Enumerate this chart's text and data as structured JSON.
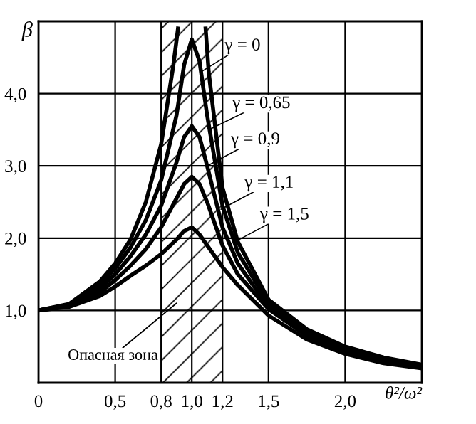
{
  "chart_data": {
    "type": "line",
    "ylabel": "β",
    "xlabel": "θ²/ω²",
    "xlim": [
      0,
      2.5
    ],
    "ylim": [
      0,
      5
    ],
    "xticks": [
      {
        "value": 0,
        "label": "0"
      },
      {
        "value": 0.5,
        "label": "0,5"
      },
      {
        "value": 0.8,
        "label": "0,8"
      },
      {
        "value": 1.0,
        "label": "1,0"
      },
      {
        "value": 1.2,
        "label": "1,2"
      },
      {
        "value": 1.5,
        "label": "1,5"
      },
      {
        "value": 2.0,
        "label": "2,0"
      }
    ],
    "yticks": [
      {
        "value": 1,
        "label": "1,0"
      },
      {
        "value": 2,
        "label": "2,0"
      },
      {
        "value": 3,
        "label": "3,0"
      },
      {
        "value": 4,
        "label": "4,0"
      }
    ],
    "grid": true,
    "marker": "none",
    "line_style": "solid",
    "series": [
      {
        "color": "#000000",
        "x": [
          0,
          0.2,
          0.4,
          0.5,
          0.6,
          0.7,
          0.8,
          0.88,
          0.91,
          1.0,
          1.09,
          1.11,
          1.2,
          1.3,
          1.5,
          1.75,
          2.0,
          2.25,
          2.5
        ],
        "values": [
          1.0,
          1.09,
          1.4,
          1.65,
          1.98,
          2.5,
          3.3,
          4.4,
          4.9,
          null,
          4.9,
          4.3,
          2.7,
          1.95,
          1.15,
          0.74,
          0.5,
          0.35,
          0.25
        ]
      },
      {
        "color": "#000000",
        "x": [
          0,
          0.2,
          0.4,
          0.5,
          0.6,
          0.7,
          0.8,
          0.9,
          0.95,
          1.0,
          1.05,
          1.1,
          1.2,
          1.3,
          1.5,
          1.75,
          2.0,
          2.25,
          2.5
        ],
        "values": [
          1.0,
          1.08,
          1.35,
          1.58,
          1.87,
          2.25,
          2.8,
          3.7,
          4.4,
          4.75,
          4.45,
          3.7,
          2.45,
          1.8,
          1.1,
          0.71,
          0.48,
          0.33,
          0.23
        ]
      },
      {
        "color": "#000000",
        "x": [
          0,
          0.2,
          0.4,
          0.5,
          0.6,
          0.7,
          0.8,
          0.9,
          0.95,
          1.0,
          1.05,
          1.1,
          1.2,
          1.3,
          1.5,
          1.75,
          2.0,
          2.25,
          2.5
        ],
        "values": [
          1.0,
          1.07,
          1.3,
          1.5,
          1.75,
          2.05,
          2.45,
          3.05,
          3.4,
          3.55,
          3.4,
          3.0,
          2.15,
          1.65,
          1.05,
          0.68,
          0.46,
          0.32,
          0.22
        ]
      },
      {
        "color": "#000000",
        "x": [
          0,
          0.2,
          0.4,
          0.5,
          0.6,
          0.7,
          0.8,
          0.9,
          0.95,
          1.0,
          1.05,
          1.1,
          1.2,
          1.3,
          1.5,
          1.75,
          2.0,
          2.25,
          2.5
        ],
        "values": [
          1.0,
          1.06,
          1.25,
          1.42,
          1.62,
          1.85,
          2.15,
          2.55,
          2.75,
          2.85,
          2.75,
          2.5,
          1.9,
          1.5,
          1.02,
          0.65,
          0.43,
          0.3,
          0.21
        ]
      },
      {
        "color": "#000000",
        "x": [
          0,
          0.2,
          0.4,
          0.5,
          0.6,
          0.7,
          0.8,
          0.9,
          0.95,
          1.0,
          1.05,
          1.1,
          1.2,
          1.3,
          1.5,
          1.75,
          2.0,
          2.25,
          2.5
        ],
        "values": [
          1.0,
          1.05,
          1.2,
          1.33,
          1.48,
          1.62,
          1.78,
          1.98,
          2.1,
          2.15,
          2.05,
          1.9,
          1.6,
          1.35,
          0.93,
          0.6,
          0.4,
          0.27,
          0.2
        ]
      }
    ],
    "bands": [
      {
        "axis": "x",
        "from": 0.8,
        "to": 1.2,
        "label": "Опасная зона",
        "color": "#000000"
      }
    ],
    "annotations": [
      {
        "text": "γ = 0",
        "x": 1.06,
        "y": 4.3
      },
      {
        "text": "γ = 0,65",
        "x": 1.11,
        "y": 3.5
      },
      {
        "text": "γ = 0,9",
        "x": 1.1,
        "y": 3.0
      },
      {
        "text": "γ = 1,1",
        "x": 1.19,
        "y": 2.4
      },
      {
        "text": "γ = 1,5",
        "x": 1.29,
        "y": 1.96
      }
    ]
  }
}
